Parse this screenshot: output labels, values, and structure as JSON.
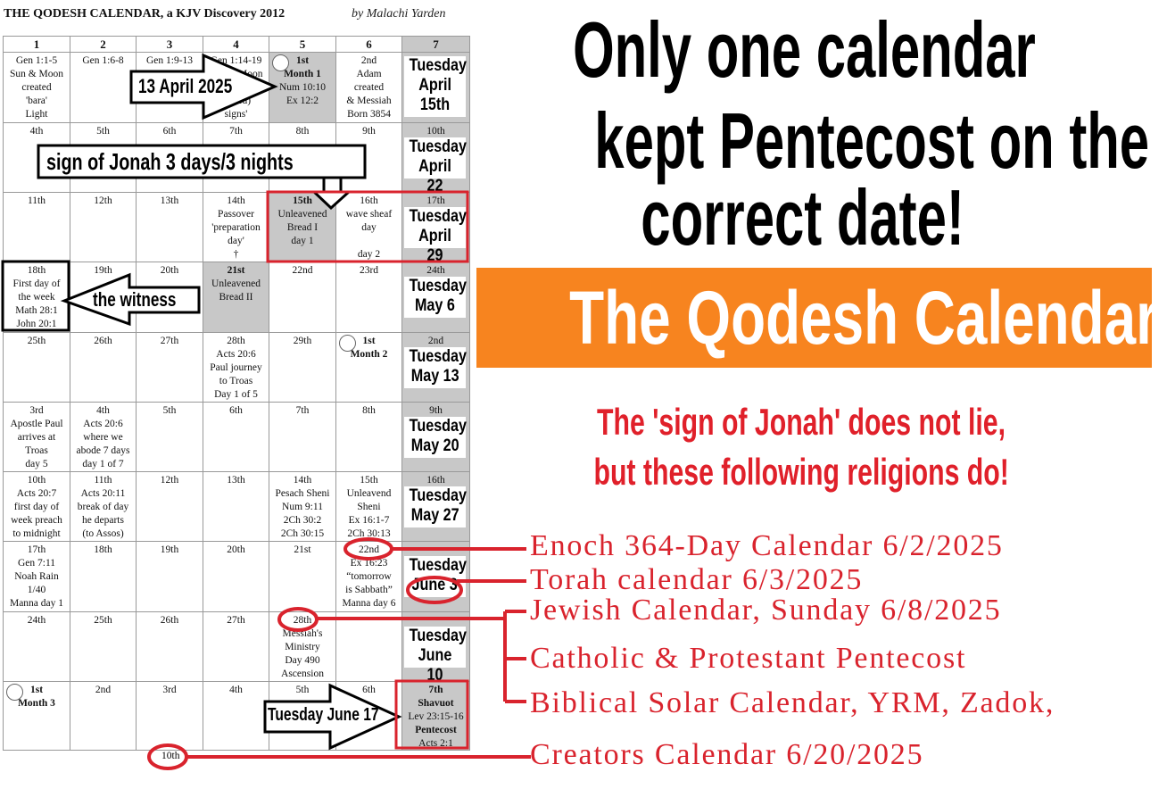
{
  "calendar": {
    "title": "THE QODESH CALENDAR, a KJV Discovery 2012",
    "author": "by Malachi Yarden",
    "weekdays": [
      "1",
      "2",
      "3",
      "4",
      "5",
      "6",
      "7"
    ],
    "rows": [
      [
        {
          "lines": [
            "Gen 1:1-5",
            "Sun & Moon",
            "created",
            "'bara'",
            "Light"
          ]
        },
        {
          "lines": [
            "Gen 1:6-8"
          ]
        },
        {
          "lines": [
            "Gen 1:9-13"
          ]
        },
        {
          "lines": [
            "Gen 1:14-19",
            "Sun & Moon",
            "",
            "(moed)",
            "signs'"
          ]
        },
        {
          "lines": [
            "1st",
            "Month 1",
            "Num 10:10",
            "Ex 12:2"
          ],
          "bold": 2,
          "gray": true,
          "moon": true
        },
        {
          "lines": [
            "2nd",
            "Adam",
            "created",
            "& Messiah",
            "Born 3854"
          ]
        },
        {
          "lines": [],
          "gray": true
        }
      ],
      [
        {
          "lines": [
            "4th"
          ]
        },
        {
          "lines": [
            "5th"
          ]
        },
        {
          "lines": [
            "6th"
          ]
        },
        {
          "lines": [
            "7th"
          ]
        },
        {
          "lines": [
            "8th"
          ]
        },
        {
          "lines": [
            "9th"
          ]
        },
        {
          "lines": [
            "10th"
          ],
          "gray": true
        }
      ],
      [
        {
          "lines": [
            "11th"
          ]
        },
        {
          "lines": [
            "12th"
          ]
        },
        {
          "lines": [
            "13th"
          ]
        },
        {
          "lines": [
            "14th",
            "Passover",
            "'preparation",
            "day'",
            "†"
          ]
        },
        {
          "lines": [
            "15th",
            "Unleavened",
            "Bread I",
            "day 1"
          ],
          "bold": 1,
          "gray": true
        },
        {
          "lines": [
            "16th",
            "wave sheaf",
            "day",
            "",
            "day 2"
          ]
        },
        {
          "lines": [
            "17th"
          ],
          "gray": true
        }
      ],
      [
        {
          "lines": [
            "18th",
            "First day of",
            "the week",
            "Math 28:1",
            "John 20:1"
          ]
        },
        {
          "lines": [
            "19th"
          ]
        },
        {
          "lines": [
            "20th"
          ]
        },
        {
          "lines": [
            "21st",
            "Unleavened",
            "Bread II"
          ],
          "bold": 1,
          "gray": true
        },
        {
          "lines": [
            "22nd"
          ]
        },
        {
          "lines": [
            "23rd"
          ]
        },
        {
          "lines": [
            "24th"
          ],
          "gray": true
        }
      ],
      [
        {
          "lines": [
            "25th"
          ]
        },
        {
          "lines": [
            "26th"
          ]
        },
        {
          "lines": [
            "27th"
          ]
        },
        {
          "lines": [
            "28th",
            "Acts 20:6",
            "Paul journey",
            "to Troas",
            "Day 1 of 5"
          ]
        },
        {
          "lines": [
            "29th"
          ]
        },
        {
          "lines": [
            "1st",
            "Month 2"
          ],
          "bold": 2,
          "moon": true
        },
        {
          "lines": [
            "2nd"
          ],
          "gray": true
        }
      ],
      [
        {
          "lines": [
            "3rd",
            "Apostle Paul",
            "arrives at",
            "Troas",
            "day 5"
          ]
        },
        {
          "lines": [
            "4th",
            "Acts 20:6",
            "where we",
            "abode 7 days",
            "day 1 of 7"
          ]
        },
        {
          "lines": [
            "5th"
          ]
        },
        {
          "lines": [
            "6th"
          ]
        },
        {
          "lines": [
            "7th"
          ]
        },
        {
          "lines": [
            "8th"
          ]
        },
        {
          "lines": [
            "9th"
          ],
          "gray": true
        }
      ],
      [
        {
          "lines": [
            "10th",
            "Acts 20:7",
            "first day of",
            "week preach",
            "to midnight"
          ]
        },
        {
          "lines": [
            "11th",
            "Acts 20:11",
            "break of day",
            "he departs",
            "(to Assos)"
          ]
        },
        {
          "lines": [
            "12th"
          ]
        },
        {
          "lines": [
            "13th"
          ]
        },
        {
          "lines": [
            "14th",
            "Pesach Sheni",
            "Num 9:11",
            "2Ch 30:2",
            "2Ch 30:15"
          ]
        },
        {
          "lines": [
            "15th",
            "Unleavend",
            "Sheni",
            "Ex 16:1-7",
            "2Ch 30:13"
          ]
        },
        {
          "lines": [
            "16th"
          ],
          "gray": true
        }
      ],
      [
        {
          "lines": [
            "17th",
            "Gen 7:11",
            "Noah Rain",
            "1/40",
            "Manna day 1"
          ]
        },
        {
          "lines": [
            "18th"
          ]
        },
        {
          "lines": [
            "19th"
          ]
        },
        {
          "lines": [
            "20th"
          ]
        },
        {
          "lines": [
            "21st"
          ]
        },
        {
          "lines": [
            "22nd",
            "Ex 16:23",
            "“tomorrow",
            "is Sabbath”",
            "Manna day 6"
          ]
        },
        {
          "lines": [],
          "gray": true
        }
      ],
      [
        {
          "lines": [
            "24th"
          ]
        },
        {
          "lines": [
            "25th"
          ]
        },
        {
          "lines": [
            "26th"
          ]
        },
        {
          "lines": [
            "27th"
          ]
        },
        {
          "lines": [
            "28th",
            "Messiah's",
            "Ministry",
            "Day 490",
            "Ascension"
          ]
        },
        {
          "lines": []
        },
        {
          "lines": [],
          "gray": true
        }
      ],
      [
        {
          "lines": [
            "1st",
            "Month 3"
          ],
          "bold": 2,
          "moon": true
        },
        {
          "lines": [
            "2nd"
          ]
        },
        {
          "lines": [
            "3rd"
          ]
        },
        {
          "lines": [
            "4th"
          ]
        },
        {
          "lines": [
            "5th"
          ]
        },
        {
          "lines": [
            "6th"
          ]
        },
        {
          "lines": [
            "7th",
            "Shavuot",
            "Lev 23:15-16",
            "Pentecost",
            "Acts 2:1"
          ],
          "boldIdx": [
            0,
            1,
            3
          ],
          "gray": true
        }
      ]
    ],
    "below_label": "10th",
    "tuesday_labels": [
      [
        "Tuesday",
        "April",
        "15th"
      ],
      [
        "Tuesday",
        "April 22"
      ],
      [
        "Tuesday",
        "April 29"
      ],
      [
        "Tuesday",
        "May 6"
      ],
      [
        "Tuesday",
        "May 13"
      ],
      [
        "Tuesday",
        "May 20"
      ],
      [
        "Tuesday",
        "May 27"
      ],
      [
        "Tuesday",
        "June 3"
      ],
      [
        "Tuesday",
        "June 10"
      ]
    ]
  },
  "callouts": {
    "april13": "13 April 2025",
    "jonah": "sign of Jonah 3 days/3 nights",
    "witness": "the witness",
    "june17": "Tuesday June 17"
  },
  "headline": [
    "Only one calendar",
    "kept Pentecost on the",
    "correct date!"
  ],
  "banner": "The Qodesh Calendar",
  "subheadline": [
    "The 'sign of Jonah' does not lie,",
    "but these following religions do!"
  ],
  "religions": [
    "Enoch 364-Day Calendar 6/2/2025",
    "Torah calendar 6/3/2025",
    "Jewish Calendar, Sunday 6/8/2025",
    "Catholic & Protestant Pentecost",
    "Biblical Solar Calendar, YRM, Zadok,",
    "Creators Calendar 6/20/2025"
  ],
  "colors": {
    "orange": "#f7841f",
    "red": "#d9232d",
    "gray_cell": "#c8c8c8"
  }
}
